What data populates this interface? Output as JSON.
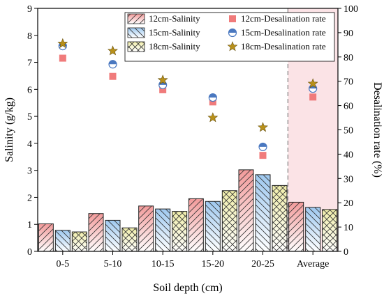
{
  "chart_data": {
    "type": "bar",
    "categories": [
      "0-5",
      "5-10",
      "10-15",
      "15-20",
      "20-25",
      "Average"
    ],
    "xlabel": "Soil depth (cm)",
    "ylabel_left": "Salinity (g/kg)",
    "ylabel_right": "Desalination rate (%)",
    "ylim_left": [
      0,
      9
    ],
    "ylim_right": [
      0,
      100
    ],
    "yticks_left": [
      "0",
      "1",
      "2",
      "3",
      "4",
      "5",
      "6",
      "7",
      "8",
      "9"
    ],
    "yticks_right": [
      "0",
      "10",
      "20",
      "30",
      "40",
      "50",
      "60",
      "70",
      "80",
      "90",
      "100"
    ],
    "series": [
      {
        "name": "12cm-Salinity",
        "kind": "bar",
        "axis": "left",
        "color": "#f4a6a6",
        "pattern": "diagonal-up",
        "values": [
          1.02,
          1.4,
          1.68,
          1.95,
          3.02,
          1.82
        ]
      },
      {
        "name": "15cm-Salinity",
        "kind": "bar",
        "axis": "left",
        "color": "#a9cff0",
        "pattern": "diagonal-down",
        "values": [
          0.78,
          1.15,
          1.57,
          1.85,
          2.84,
          1.63
        ]
      },
      {
        "name": "18cm-Salinity",
        "kind": "bar",
        "axis": "left",
        "color": "#f3f0b8",
        "pattern": "crosshatch",
        "values": [
          0.72,
          0.87,
          1.48,
          2.25,
          2.44,
          1.55
        ]
      },
      {
        "name": "12cm-Desalination rate",
        "kind": "scatter",
        "axis": "right",
        "color": "#f07b7b",
        "marker": "square",
        "values": [
          79.5,
          72.0,
          66.5,
          61.5,
          39.5,
          63.5
        ]
      },
      {
        "name": "15cm-Desalination rate",
        "kind": "scatter",
        "axis": "right",
        "color": "#4a78c0",
        "marker": "circle",
        "values": [
          84.5,
          77.0,
          68.5,
          63.3,
          43.0,
          67.0
        ]
      },
      {
        "name": "18cm-Desalination rate",
        "kind": "scatter",
        "axis": "right",
        "color": "#b8901a",
        "marker": "star",
        "values": [
          85.5,
          82.5,
          70.5,
          55.0,
          51.0,
          69.0
        ]
      }
    ],
    "highlight_region": {
      "category": "Average",
      "color": "#fbe3e6"
    },
    "separator_line": "dashed",
    "legend_placement": "top-right"
  }
}
